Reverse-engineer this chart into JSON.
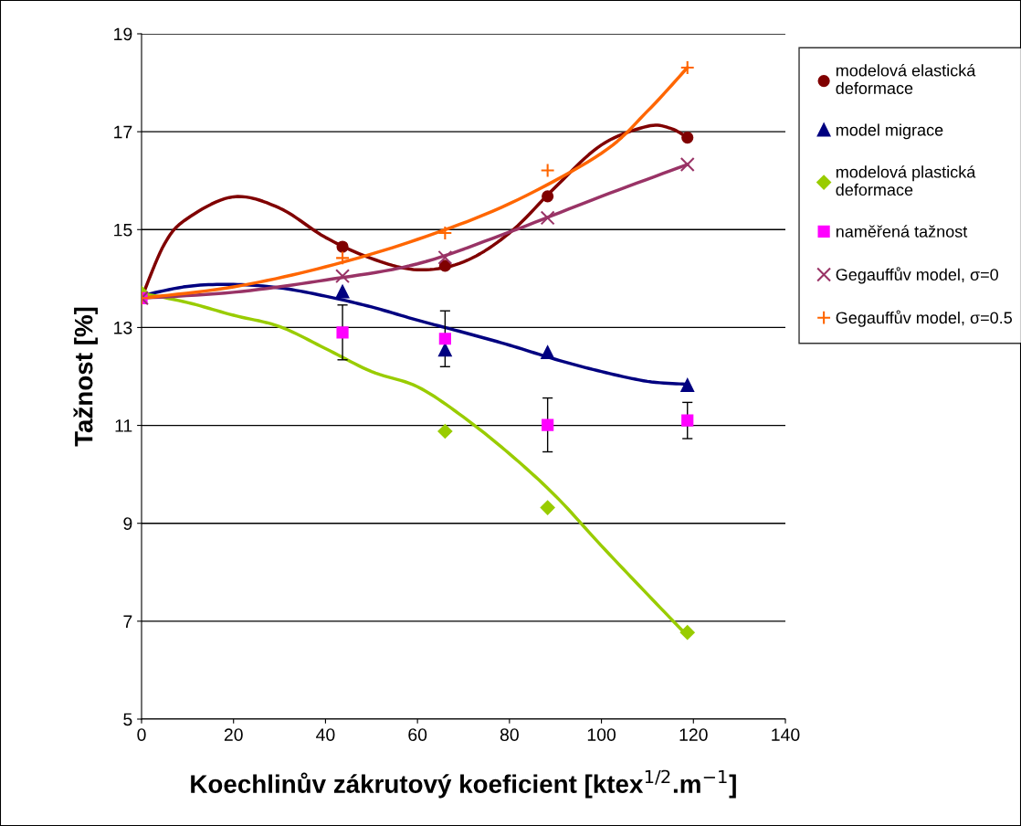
{
  "chart_data": {
    "type": "scatter",
    "xlabel": "Koechlinův zákrutový koeficient [ktex$^{1/2}$.m$^{−1}$]",
    "ylabel": "Tažnost [%]",
    "xlim": [
      0,
      140
    ],
    "xticks": [
      0,
      20,
      40,
      60,
      80,
      100,
      120,
      140
    ],
    "ylim": [
      5,
      19
    ],
    "yticks": [
      5,
      7,
      9,
      11,
      13,
      15,
      17,
      19
    ],
    "grid": "y",
    "legend": "right",
    "series": [
      {
        "name": "modelová elastická\ndeformace",
        "color": "#800000",
        "marker": "circle",
        "x": [
          43.7,
          66.0,
          88.3,
          118.7
        ],
        "values": [
          14.65,
          14.26,
          15.68,
          16.88
        ]
      },
      {
        "name": "model migrace",
        "color": "#000080",
        "marker": "triangle",
        "x": [
          43.7,
          66.0,
          88.3,
          118.7
        ],
        "values": [
          13.73,
          12.54,
          12.49,
          11.82
        ]
      },
      {
        "name": "modelová plastická\ndeformace",
        "color": "#99cc00",
        "marker": "diamond",
        "x": [
          0,
          43.7,
          66.0,
          88.3,
          118.7
        ],
        "values": [
          13.7,
          null,
          10.88,
          9.32,
          6.77
        ]
      },
      {
        "name": "naměřená tažnost",
        "color": "#ff00ff",
        "marker": "square",
        "x": [
          0,
          43.7,
          66.0,
          88.3,
          118.7
        ],
        "values": [
          13.6,
          12.9,
          12.77,
          11.01,
          11.1
        ],
        "errors": [
          null,
          0.56,
          0.57,
          0.55,
          0.37
        ]
      },
      {
        "name": "Gegauffův model, σ=0",
        "color": "#993366",
        "marker": "x",
        "x": [
          0,
          43.7,
          66.0,
          88.3,
          118.7
        ],
        "values": [
          13.6,
          14.05,
          14.43,
          15.24,
          16.33
        ]
      },
      {
        "name": "Gegauffův model, σ=0.5",
        "color": "#ff6600",
        "marker": "cross",
        "x": [
          0,
          43.7,
          66.0,
          88.3,
          118.7
        ],
        "values": [
          13.6,
          14.42,
          14.93,
          16.21,
          18.31
        ]
      },
      {
        "type": "line",
        "color": "#800000",
        "x": [
          0,
          5,
          10,
          20,
          30,
          40,
          50,
          60,
          70,
          80,
          90,
          100,
          110,
          115,
          118.7
        ],
        "values": [
          13.6,
          14.71,
          15.23,
          15.67,
          15.44,
          14.84,
          14.41,
          14.18,
          14.34,
          14.93,
          15.87,
          16.73,
          17.11,
          17.07,
          16.88
        ]
      },
      {
        "type": "line",
        "color": "#000080",
        "x": [
          0,
          10,
          20,
          30,
          40,
          50,
          60,
          70,
          80,
          90,
          100,
          110,
          118.7
        ],
        "values": [
          13.65,
          13.84,
          13.88,
          13.81,
          13.64,
          13.42,
          13.15,
          12.9,
          12.64,
          12.35,
          12.1,
          11.9,
          11.84
        ]
      },
      {
        "type": "line",
        "color": "#99cc00",
        "x": [
          0,
          10,
          20,
          30,
          40,
          50,
          60,
          70,
          80,
          90,
          100,
          110,
          118.7
        ],
        "values": [
          13.7,
          13.51,
          13.25,
          13.02,
          12.57,
          12.1,
          11.79,
          11.17,
          10.42,
          9.56,
          8.54,
          7.55,
          6.7
        ]
      },
      {
        "type": "line",
        "color": "#993366",
        "x": [
          0,
          20,
          40,
          60,
          80,
          100,
          118.7
        ],
        "values": [
          13.6,
          13.72,
          13.97,
          14.3,
          14.95,
          15.68,
          16.33
        ]
      },
      {
        "type": "line",
        "color": "#ff6600",
        "x": [
          0,
          20,
          40,
          60,
          80,
          100,
          110,
          118.7
        ],
        "values": [
          13.6,
          13.83,
          14.24,
          14.8,
          15.53,
          16.56,
          17.42,
          18.31
        ]
      }
    ]
  }
}
